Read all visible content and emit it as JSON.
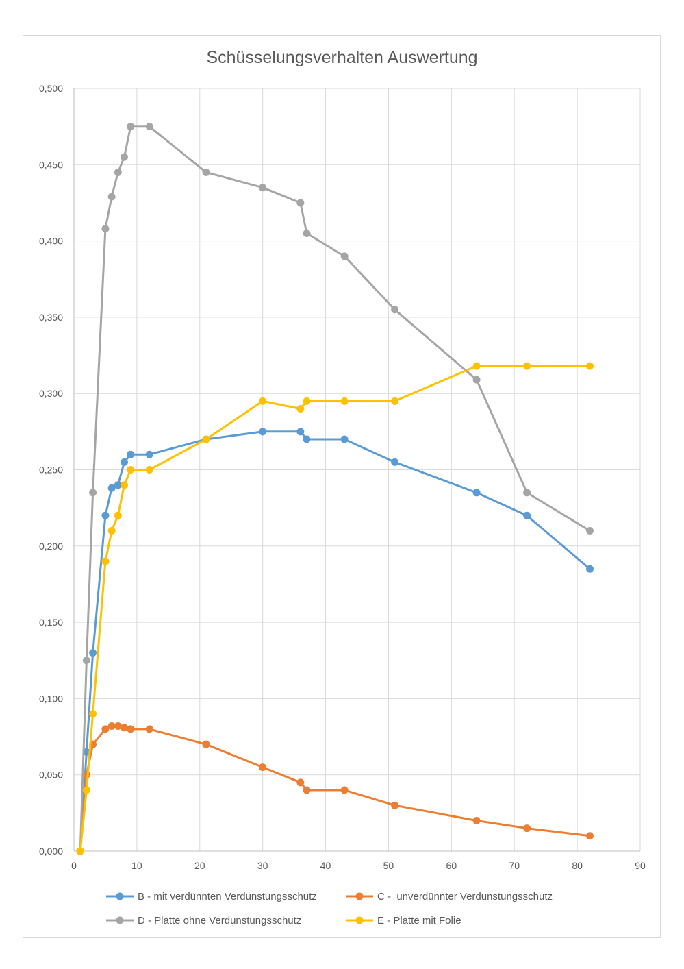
{
  "chart_data": {
    "type": "scatter",
    "title": "Schüsselungsverhalten Auswertung",
    "xlim": [
      0,
      90
    ],
    "ylim": [
      0,
      0.5
    ],
    "x_ticks": [
      "0",
      "10",
      "20",
      "30",
      "40",
      "50",
      "60",
      "70",
      "80",
      "90"
    ],
    "y_ticks": [
      "0,000",
      "0,050",
      "0,100",
      "0,150",
      "0,200",
      "0,250",
      "0,300",
      "0,350",
      "0,400",
      "0,450",
      "0,500"
    ],
    "grid": true,
    "legend_position": "bottom",
    "series": [
      {
        "name": "B - mit verdünnten Verdunstungsschutz",
        "color": "#5b9bd5",
        "x": [
          1,
          2,
          3,
          5,
          6,
          7,
          8,
          9,
          12,
          21,
          30,
          36,
          37,
          43,
          51,
          64,
          72,
          82
        ],
        "y": [
          0.0,
          0.065,
          0.13,
          0.22,
          0.238,
          0.24,
          0.255,
          0.26,
          0.26,
          0.27,
          0.275,
          0.275,
          0.27,
          0.27,
          0.255,
          0.235,
          0.22,
          0.185
        ]
      },
      {
        "name": "C -  unverdünnter Verdunstungsschutz",
        "color": "#ed7d31",
        "x": [
          1,
          2,
          3,
          5,
          6,
          7,
          8,
          9,
          12,
          21,
          30,
          36,
          37,
          43,
          51,
          64,
          72,
          82
        ],
        "y": [
          0.0,
          0.05,
          0.07,
          0.08,
          0.082,
          0.082,
          0.081,
          0.08,
          0.08,
          0.07,
          0.055,
          0.045,
          0.04,
          0.04,
          0.03,
          0.02,
          0.015,
          0.01
        ]
      },
      {
        "name": "D - Platte ohne Verdunstungsschutz",
        "color": "#a5a5a5",
        "x": [
          1,
          2,
          3,
          5,
          6,
          7,
          8,
          9,
          12,
          21,
          30,
          36,
          37,
          43,
          51,
          64,
          72,
          82
        ],
        "y": [
          0.0,
          0.125,
          0.235,
          0.408,
          0.429,
          0.445,
          0.455,
          0.475,
          0.475,
          0.445,
          0.435,
          0.425,
          0.405,
          0.39,
          0.355,
          0.309,
          0.235,
          0.21
        ]
      },
      {
        "name": "E - Platte mit Folie",
        "color": "#ffc000",
        "x": [
          1,
          2,
          3,
          5,
          6,
          7,
          8,
          9,
          12,
          21,
          30,
          36,
          37,
          43,
          51,
          64,
          72,
          82
        ],
        "y": [
          0.0,
          0.04,
          0.09,
          0.19,
          0.21,
          0.22,
          0.24,
          0.25,
          0.25,
          0.27,
          0.295,
          0.29,
          0.295,
          0.295,
          0.295,
          0.318,
          0.318,
          0.318
        ]
      }
    ]
  }
}
